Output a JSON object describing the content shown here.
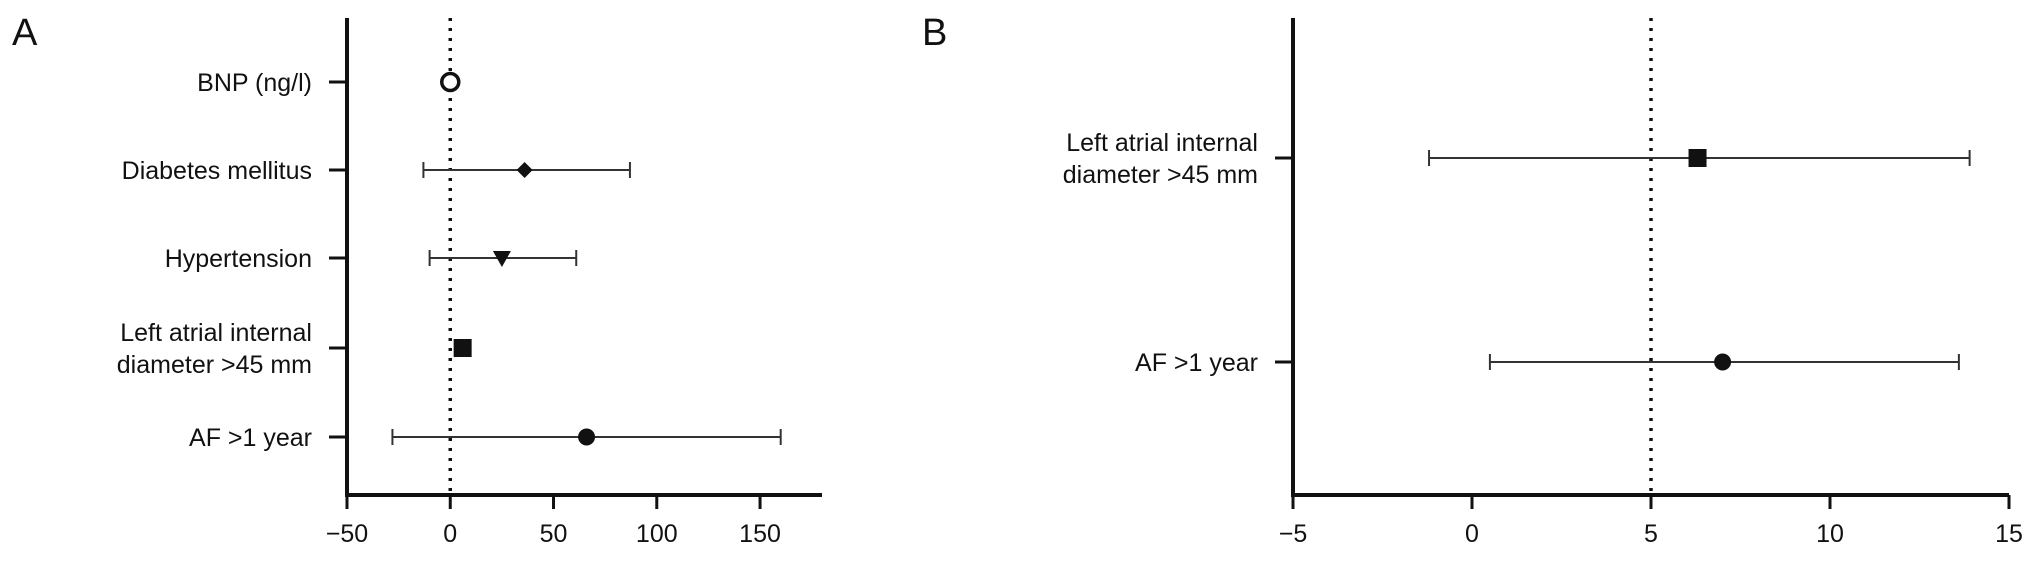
{
  "chart_data": [
    {
      "type": "forest",
      "panel_label": "A",
      "xlim": [
        -50,
        180
      ],
      "ticks": [
        "-50",
        "0",
        "50",
        "100",
        "150"
      ],
      "tick_values": [
        -50,
        0,
        50,
        100,
        150
      ],
      "reference_line": 0,
      "rows": [
        {
          "label_lines": [
            "BNP (ng/l)"
          ],
          "estimate": 0,
          "ci": [
            0,
            0
          ],
          "marker": "open-circle"
        },
        {
          "label_lines": [
            "Diabetes mellitus"
          ],
          "estimate": 36,
          "ci": [
            -13,
            87
          ],
          "marker": "diamond"
        },
        {
          "label_lines": [
            "Hypertension"
          ],
          "estimate": 25,
          "ci": [
            -10,
            61
          ],
          "marker": "triangle-down"
        },
        {
          "label_lines": [
            "Left atrial internal",
            "diameter >45 mm"
          ],
          "estimate": 6,
          "ci": [
            6,
            6
          ],
          "marker": "square"
        },
        {
          "label_lines": [
            "AF >1 year"
          ],
          "estimate": 66,
          "ci": [
            -28,
            160
          ],
          "marker": "circle"
        }
      ]
    },
    {
      "type": "forest",
      "panel_label": "B",
      "xlim": [
        -5,
        15
      ],
      "ticks": [
        "-5",
        "0",
        "5",
        "10",
        "15"
      ],
      "tick_values": [
        -5,
        0,
        5,
        10,
        15
      ],
      "reference_line": 5,
      "rows": [
        {
          "label_lines": [
            "Left atrial internal",
            "diameter >45 mm"
          ],
          "estimate": 6.3,
          "ci": [
            -1.2,
            13.9
          ],
          "marker": "square"
        },
        {
          "label_lines": [
            "AF >1 year"
          ],
          "estimate": 7.0,
          "ci": [
            0.5,
            13.6
          ],
          "marker": "circle"
        }
      ]
    }
  ]
}
